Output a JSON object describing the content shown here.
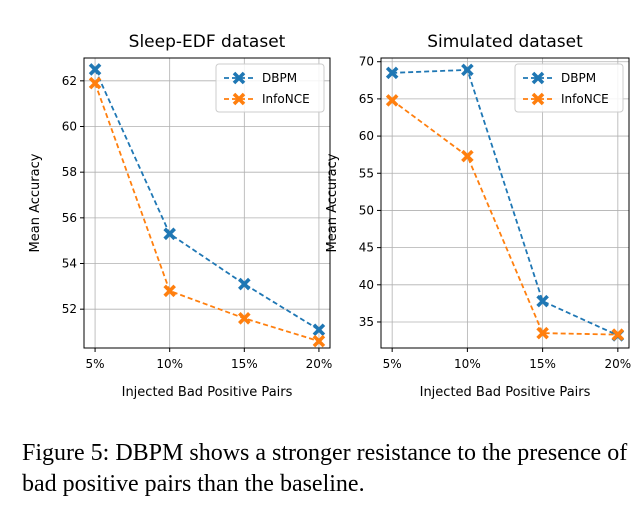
{
  "caption": "Figure 5: DBPM shows a stronger resistance to the presence of bad positive pairs than the baseline.",
  "colors": {
    "dbpm": "#1f77b4",
    "infonce": "#ff7f0e",
    "grid": "#b0b0b0"
  },
  "chart_data": [
    {
      "type": "line",
      "title": "Sleep-EDF dataset",
      "xlabel": "Injected Bad Positive Pairs",
      "ylabel": "Mean Accuracy",
      "categories": [
        "5%",
        "10%",
        "15%",
        "20%"
      ],
      "ylim": [
        50.3,
        63.0
      ],
      "yticks": [
        52,
        54,
        56,
        58,
        60,
        62
      ],
      "grid": true,
      "legend_position": "top-right",
      "series": [
        {
          "name": "DBPM",
          "values": [
            62.5,
            55.3,
            53.1,
            51.1
          ]
        },
        {
          "name": "InfoNCE",
          "values": [
            61.9,
            52.8,
            51.6,
            50.6
          ]
        }
      ]
    },
    {
      "type": "line",
      "title": "Simulated dataset",
      "xlabel": "Injected Bad Positive Pairs",
      "ylabel": "Mean Accuracy",
      "categories": [
        "5%",
        "10%",
        "15%",
        "20%"
      ],
      "ylim": [
        31.5,
        70.5
      ],
      "yticks": [
        35,
        40,
        45,
        50,
        55,
        60,
        65,
        70
      ],
      "grid": true,
      "legend_position": "top-right",
      "series": [
        {
          "name": "DBPM",
          "values": [
            68.5,
            68.9,
            37.8,
            33.2
          ]
        },
        {
          "name": "InfoNCE",
          "values": [
            64.8,
            57.3,
            33.5,
            33.3
          ]
        }
      ]
    }
  ]
}
